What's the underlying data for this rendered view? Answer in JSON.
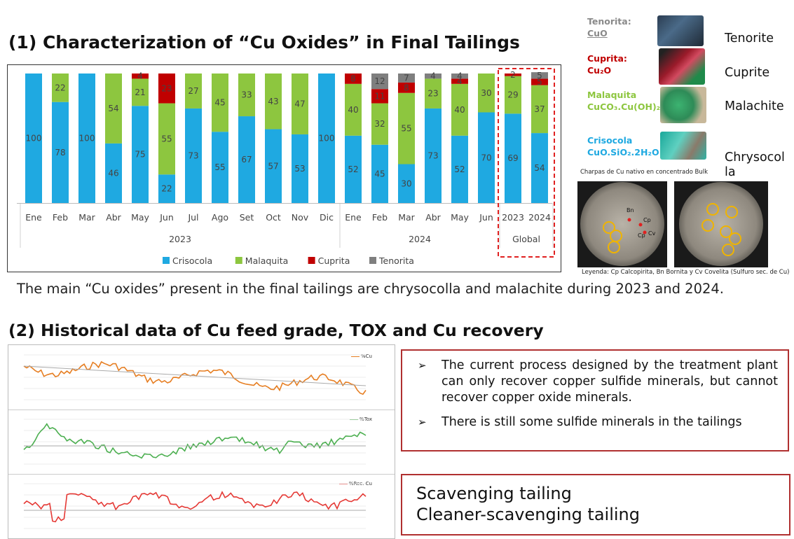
{
  "section1": {
    "title": "(1) Characterization of “Cu Oxides” in Final Tailings"
  },
  "chart_data": {
    "type": "bar",
    "stacked": true,
    "percent": true,
    "categories": [
      "Ene",
      "Feb",
      "Mar",
      "Abr",
      "May",
      "Jun",
      "Jul",
      "Ago",
      "Set",
      "Oct",
      "Nov",
      "Dic",
      "Ene",
      "Feb",
      "Mar",
      "Abr",
      "May",
      "Jun",
      "2023",
      "2024"
    ],
    "groups": [
      {
        "label": "2023",
        "from": 0,
        "to": 11
      },
      {
        "label": "2024",
        "from": 12,
        "to": 17
      },
      {
        "label": "Global",
        "from": 18,
        "to": 19
      }
    ],
    "series": [
      {
        "name": "Crisocola",
        "color": "#1fa9e1",
        "values": [
          100,
          78,
          100,
          46,
          75,
          22,
          73,
          55,
          67,
          57,
          53,
          100,
          52,
          45,
          30,
          73,
          52,
          70,
          69,
          54
        ]
      },
      {
        "name": "Malaquita",
        "color": "#8dc63f",
        "values": [
          0,
          22,
          0,
          54,
          21,
          55,
          27,
          45,
          33,
          43,
          47,
          0,
          40,
          32,
          55,
          23,
          40,
          30,
          29,
          37
        ]
      },
      {
        "name": "Cuprita",
        "color": "#c00000",
        "values": [
          0,
          0,
          0,
          0,
          4,
          23,
          0,
          0,
          0,
          0,
          0,
          0,
          8,
          11,
          8,
          0,
          4,
          0,
          2,
          5
        ]
      },
      {
        "name": "Tenorita",
        "color": "#7f7f7f",
        "values": [
          0,
          0,
          0,
          0,
          0,
          0,
          0,
          0,
          0,
          0,
          0,
          0,
          0,
          12,
          7,
          4,
          4,
          0,
          0,
          5
        ]
      }
    ],
    "ylim": [
      0,
      100
    ],
    "legend": "bottom",
    "highlight": "Global"
  },
  "minerals": [
    {
      "label_line1": "Tenorita:",
      "label_line2": "CuO",
      "name": "Tenorite",
      "color": "#8a8a8a"
    },
    {
      "label_line1": "Cuprita:",
      "label_line2": "Cu₂O",
      "name": "Cuprite",
      "color": "#c00000"
    },
    {
      "label_line1": "Malaquita",
      "label_line2": "CuCO₃.Cu(OH)₂",
      "name": "Malachite",
      "color": "#8dc63f"
    },
    {
      "label_line1": "Crisocola",
      "label_line2": "CuO.SiO₂.2H₂O",
      "name": "Chrysocol",
      "name2": "la",
      "color": "#1fa9e1"
    }
  ],
  "micro": {
    "caption": "Charpas de Cu nativo en concentrado Bulk",
    "legend": "Leyenda: Cp Calcopirita, Bn Bornita y Cv Covelita (Sulfuro sec. de Cu)",
    "labels": [
      "Bn",
      "Cp",
      "Cv",
      "Cp"
    ]
  },
  "description": "The main “Cu oxides” present in the final tailings are chrysocolla and malachite during 2023 and 2024.",
  "section2": {
    "title": "(2)  Historical data of Cu feed grade, TOX and Cu recovery"
  },
  "history": {
    "panels": [
      {
        "legend": "%Cu",
        "color": "#e67e22"
      },
      {
        "legend": "%Tox",
        "color": "#4caf50"
      },
      {
        "legend": "%Rec. Cu",
        "color": "#e53935"
      }
    ]
  },
  "notes": {
    "bullet1": "The current process designed by the treatment plant can only recover copper sulfide minerals, but cannot recover copper oxide minerals.",
    "bullet2": "There is still some sulfide minerals in the tailings",
    "arrow": "➢"
  },
  "tailings": {
    "line1": "Scavenging tailing",
    "line2": "Cleaner-scavenging tailing"
  }
}
